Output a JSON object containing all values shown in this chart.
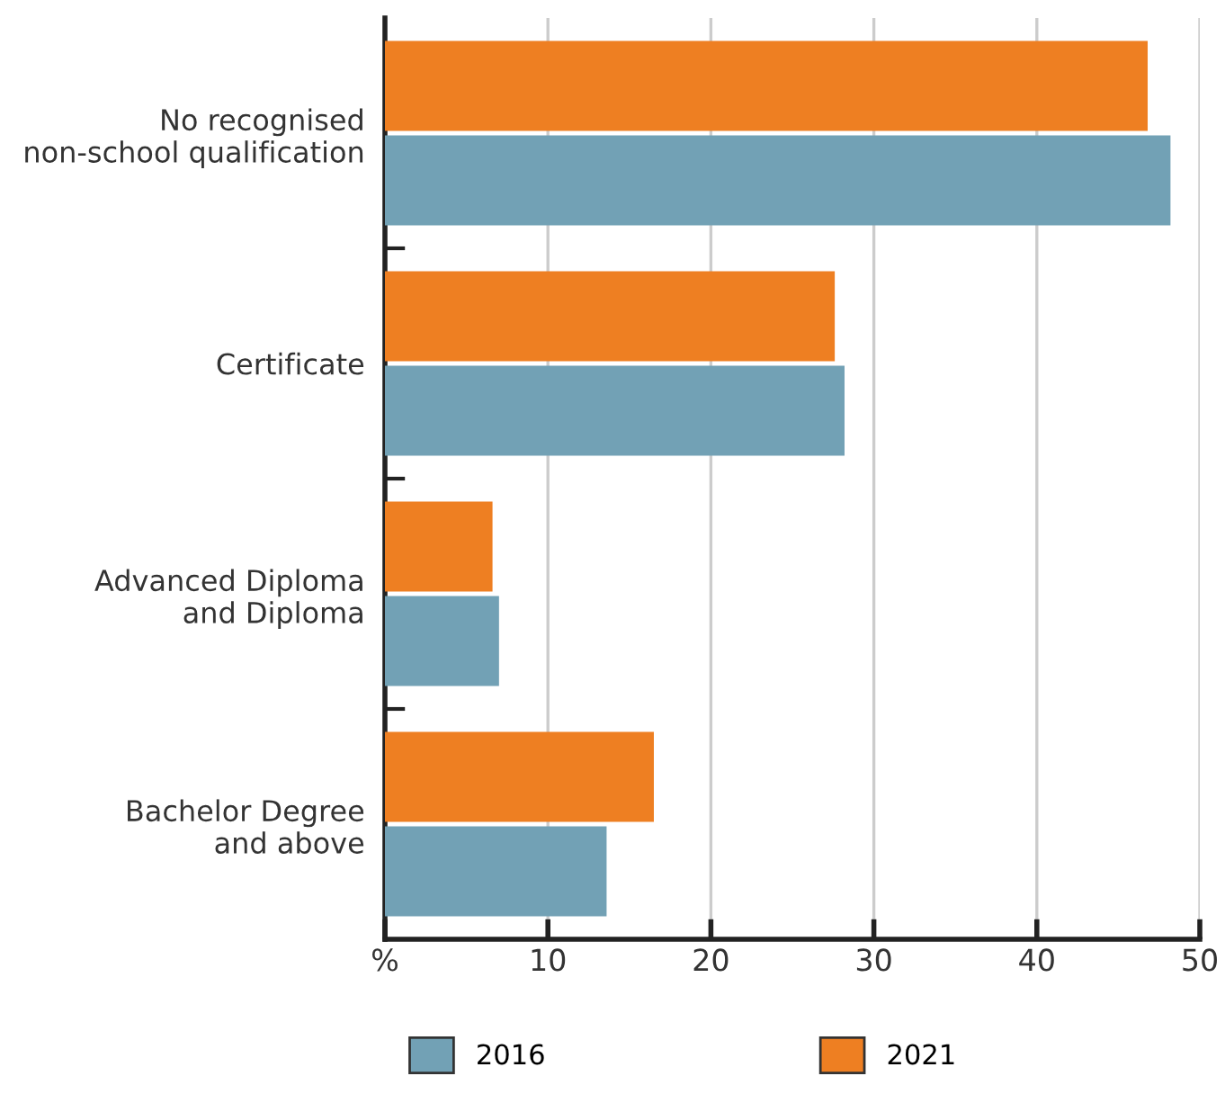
{
  "chart_data": {
    "type": "bar",
    "orientation": "horizontal",
    "categories": [
      "No recognised\nnon-school qualification",
      "Certificate",
      "Advanced Diploma\nand Diploma",
      "Bachelor Degree\nand above"
    ],
    "series": [
      {
        "name": "2016",
        "color": "#72a1b5",
        "values": [
          48.2,
          28.2,
          7.0,
          13.6
        ]
      },
      {
        "name": "2021",
        "color": "#ee7f22",
        "values": [
          46.8,
          27.6,
          6.6,
          16.5
        ]
      }
    ],
    "xlim": [
      0,
      50
    ],
    "xticks": [
      {
        "value": 0,
        "label": "%"
      },
      10,
      20,
      30,
      40,
      50
    ],
    "grid": "x",
    "legend": "bottom"
  }
}
